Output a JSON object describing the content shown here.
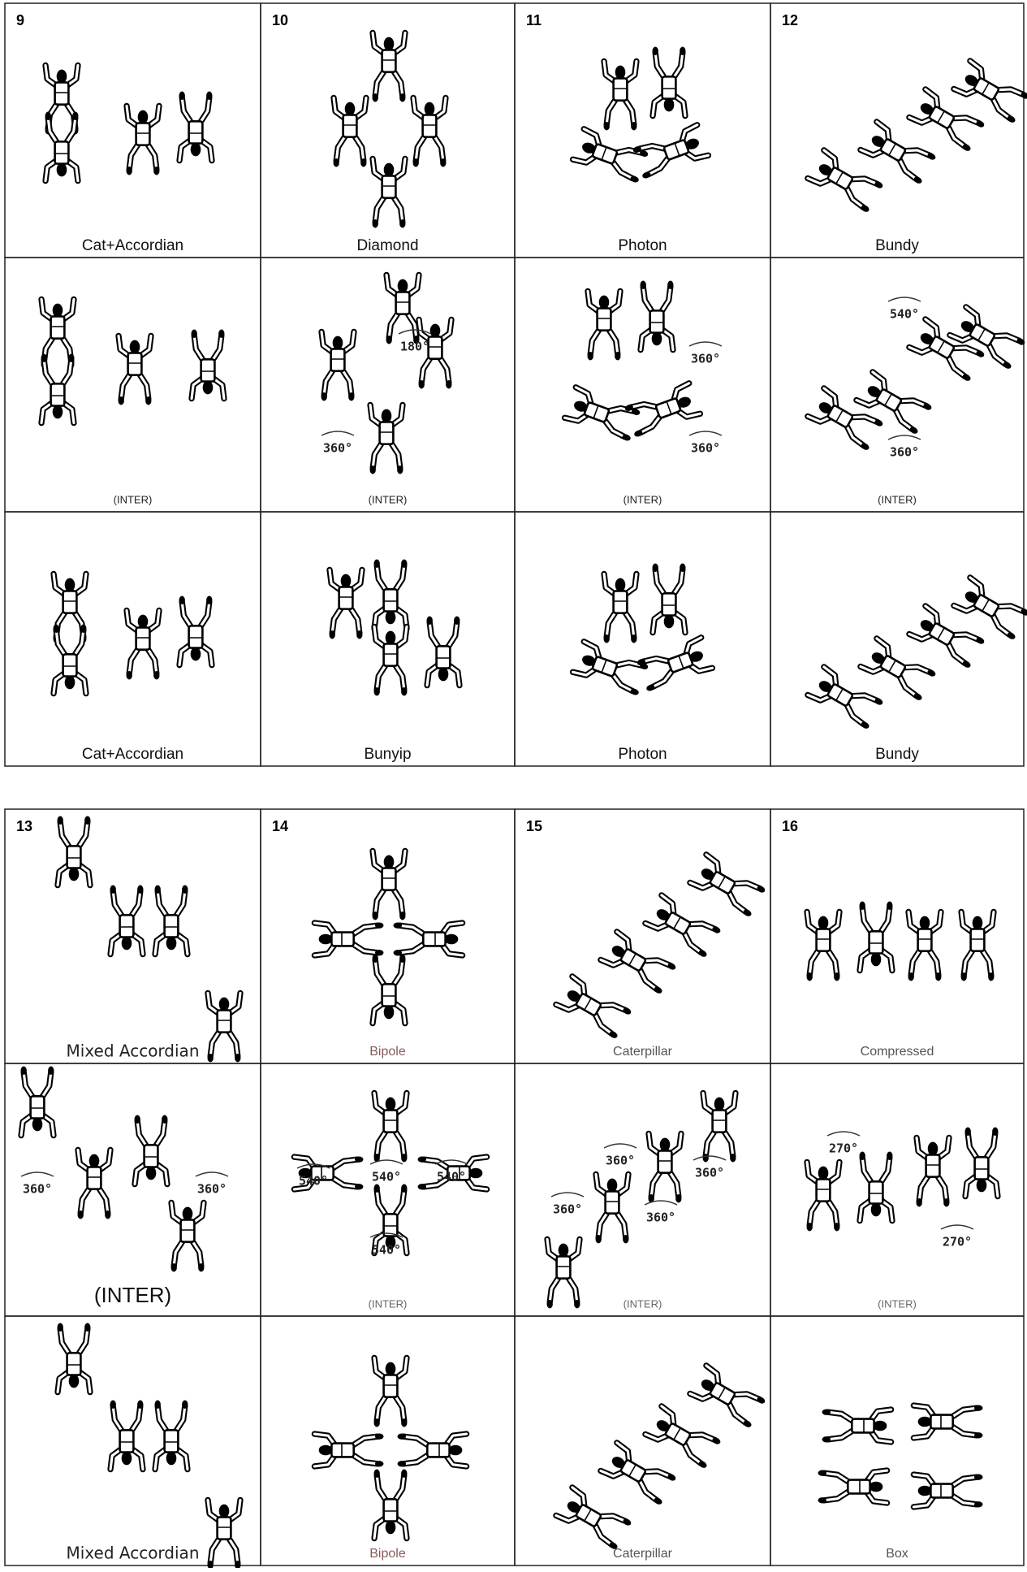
{
  "tables": [
    {
      "rows": [
        {
          "cells": [
            {
              "number": "9",
              "label": "Cat+Accordian"
            },
            {
              "number": "10",
              "label": "Diamond"
            },
            {
              "number": "11",
              "label": "Photon"
            },
            {
              "number": "12",
              "label": "Bundy"
            }
          ]
        },
        {
          "cells": [
            {
              "label": "(INTER)"
            },
            {
              "label": "(INTER)",
              "annotations": [
                "180°",
                "360°"
              ]
            },
            {
              "label": "(INTER)",
              "annotations": [
                "360°",
                "360°"
              ]
            },
            {
              "label": "(INTER)",
              "annotations": [
                "540°",
                "360°"
              ]
            }
          ]
        },
        {
          "cells": [
            {
              "label": "Cat+Accordian"
            },
            {
              "label": "Bunyip"
            },
            {
              "label": "Photon"
            },
            {
              "label": "Bundy"
            }
          ]
        }
      ]
    },
    {
      "rows": [
        {
          "cells": [
            {
              "number": "13",
              "label": "Mixed Accordian"
            },
            {
              "number": "14",
              "label": "Bipole"
            },
            {
              "number": "15",
              "label": "Caterpillar"
            },
            {
              "number": "16",
              "label": "Compressed"
            }
          ]
        },
        {
          "cells": [
            {
              "label": "(INTER)",
              "annotations": [
                "360°",
                "360°"
              ]
            },
            {
              "label": "(INTER)",
              "annotations": [
                "540°",
                "540°",
                "540°",
                "540°"
              ]
            },
            {
              "label": "(INTER)",
              "annotations": [
                "360°",
                "360°",
                "360°",
                "360°"
              ]
            },
            {
              "label": "(INTER)",
              "annotations": [
                "270°",
                "270°"
              ]
            }
          ]
        },
        {
          "cells": [
            {
              "label": "Mixed Accordian"
            },
            {
              "label": "Bipole"
            },
            {
              "label": "Caterpillar"
            },
            {
              "label": "Box"
            }
          ]
        }
      ]
    }
  ]
}
